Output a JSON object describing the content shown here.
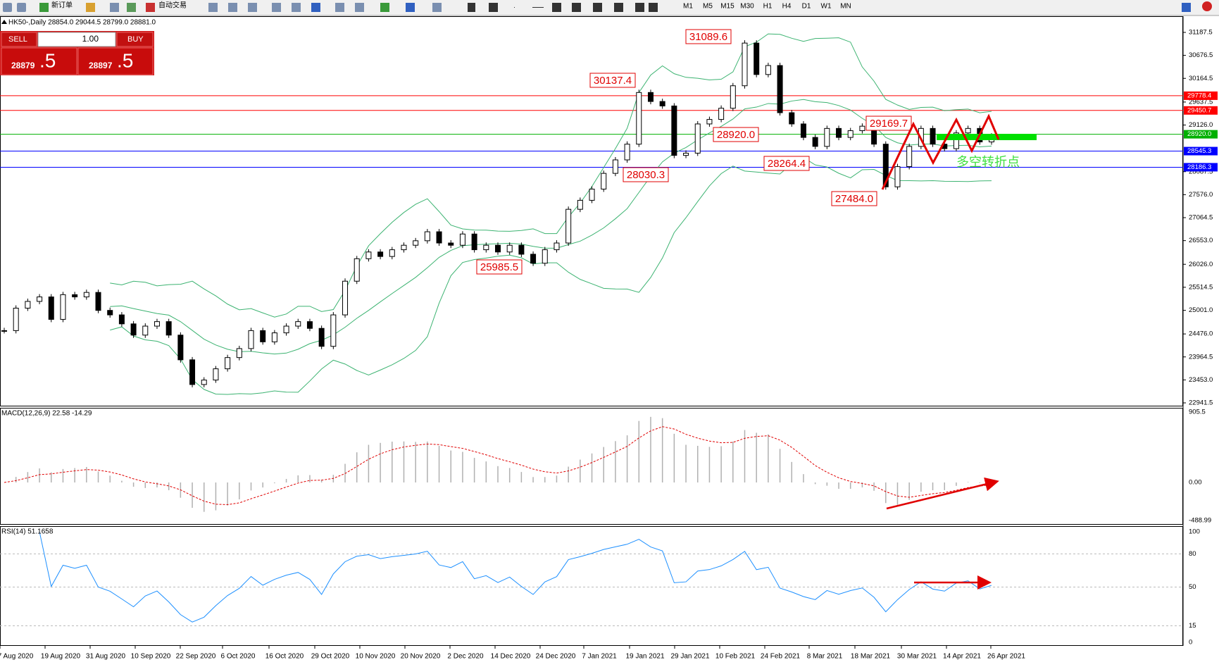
{
  "toolbar": {
    "new_order": "新订单",
    "auto_trading": "自动交易",
    "timeframes": [
      "M1",
      "M5",
      "M15",
      "M30",
      "H1",
      "H4",
      "D1",
      "W1",
      "MN"
    ]
  },
  "order_panel": {
    "sell": "SELL",
    "lots": "1.00",
    "buy": "BUY",
    "bid_main": "28879",
    "bid_pips": ".5",
    "ask_main": "28897",
    "ask_pips": ".5"
  },
  "main": {
    "header": "HK50-,Daily  28854.0 29044.5 28799.0 28881.0",
    "price_axis": [
      {
        "value": 31187.5,
        "label": "31187.5"
      },
      {
        "value": 30676.5,
        "label": "30676.5"
      },
      {
        "value": 30164.5,
        "label": "30164.5"
      },
      {
        "value": 29637.5,
        "label": "29637.5"
      },
      {
        "value": 29126,
        "label": "29126.0"
      },
      {
        "value": 28087.5,
        "label": "28087.5"
      },
      {
        "value": 27576,
        "label": "27576.0"
      },
      {
        "value": 27064.5,
        "label": "27064.5"
      },
      {
        "value": 26553,
        "label": "26553.0"
      },
      {
        "value": 26026,
        "label": "26026.0"
      },
      {
        "value": 25514.5,
        "label": "25514.5"
      },
      {
        "value": 25001,
        "label": "25001.0"
      },
      {
        "value": 24476,
        "label": "24476.0"
      },
      {
        "value": 23964.5,
        "label": "23964.5"
      },
      {
        "value": 23453,
        "label": "23453.0"
      },
      {
        "value": 22941.5,
        "label": "22941.5"
      }
    ],
    "closes": [
      24550,
      25050,
      25200,
      25300,
      24800,
      25350,
      25300,
      25400,
      25000,
      24900,
      24700,
      24450,
      24650,
      24750,
      24450,
      23900,
      23350,
      23450,
      23700,
      23950,
      24150,
      24550,
      24300,
      24500,
      24650,
      24750,
      24600,
      24200,
      24900,
      25650,
      26150,
      26300,
      26200,
      26350,
      26450,
      26550,
      26750,
      26500,
      26450,
      26700,
      26350,
      26450,
      26300,
      26450,
      26250,
      26050,
      26350,
      26500,
      27250,
      27450,
      27700,
      28050,
      28350,
      28700,
      29850,
      29650,
      29550,
      28450,
      28500,
      29150,
      29250,
      29500,
      30000,
      30950,
      30250,
      30450,
      29400,
      29150,
      28850,
      28650,
      29050,
      28850,
      29000,
      29100,
      28700,
      27750,
      28200,
      28650,
      29050,
      28700,
      28600,
      28950,
      29050,
      28750,
      28881
    ],
    "levels": [
      {
        "value": 29778.4,
        "label": "29778.4",
        "color": "#ff0000"
      },
      {
        "value": 29450.7,
        "label": "29450.7",
        "color": "#ff0000"
      },
      {
        "value": 28920,
        "label": "28920.0",
        "color": "#00b000"
      },
      {
        "value": 28545.3,
        "label": "28545.3",
        "color": "#0000ff"
      },
      {
        "value": 28186.3,
        "label": "28186.3",
        "color": "#0000ff"
      }
    ],
    "annotations": [
      "31089.6",
      "30137.4",
      "28920.0",
      "29169.7",
      "28264.4",
      "28030.3",
      "27484.0",
      "25985.5"
    ],
    "note": "多空转折点"
  },
  "macd": {
    "label": "MACD(12,26,9) 22.58 -14.29",
    "axis": [
      {
        "value": 905.5,
        "label": "905.5"
      },
      {
        "value": 0,
        "label": "0.00"
      },
      {
        "value": -488.99,
        "label": "-488.99"
      }
    ]
  },
  "rsi": {
    "label": "RSI(14) 51.1658",
    "axis": [
      100,
      80,
      50,
      15,
      0
    ]
  },
  "dates": [
    "7 Aug 2020",
    "19 Aug 2020",
    "31 Aug 2020",
    "10 Sep 2020",
    "22 Sep 2020",
    "6 Oct 2020",
    "16 Oct 2020",
    "29 Oct 2020",
    "10 Nov 2020",
    "20 Nov 2020",
    "2 Dec 2020",
    "14 Dec 2020",
    "24 Dec 2020",
    "7 Jan 2021",
    "19 Jan 2021",
    "29 Jan 2021",
    "10 Feb 2021",
    "24 Feb 2021",
    "8 Mar 2021",
    "18 Mar 2021",
    "30 Mar 2021",
    "14 Apr 2021",
    "26 Apr 2021"
  ]
}
